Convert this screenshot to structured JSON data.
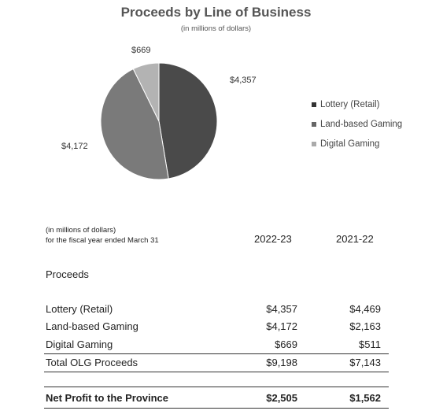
{
  "chart_data": {
    "type": "pie",
    "title": "Proceeds by Line of Business",
    "subtitle": "(in millions of dollars)",
    "slices": [
      {
        "name": "Lottery (Retail)",
        "value": 4357,
        "label": "$4,357",
        "color": "#4a4a4a"
      },
      {
        "name": "Land-based Gaming",
        "value": 4172,
        "label": "$4,172",
        "color": "#7a7a7a"
      },
      {
        "name": "Digital Gaming",
        "value": 669,
        "label": "$669",
        "color": "#b3b3b3"
      }
    ],
    "legend_position": "right"
  },
  "table": {
    "units_line1": "(in millions of dollars)",
    "units_line2": "for the fiscal year ended March 31",
    "columns": [
      "2022-23",
      "2021-22"
    ],
    "section_label": "Proceeds",
    "rows": [
      {
        "label": "Lottery (Retail)",
        "v2023": "$4,357",
        "v2022": "$4,469"
      },
      {
        "label": "Land-based Gaming",
        "v2023": "$4,172",
        "v2022": "$2,163"
      },
      {
        "label": "Digital Gaming",
        "v2023": "$669",
        "v2022": "$511"
      }
    ],
    "total": {
      "label": "Total OLG Proceeds",
      "v2023": "$9,198",
      "v2022": "$7,143"
    },
    "net": {
      "label": "Net Profit to the Province",
      "v2023": "$2,505",
      "v2022": "$1,562"
    }
  }
}
